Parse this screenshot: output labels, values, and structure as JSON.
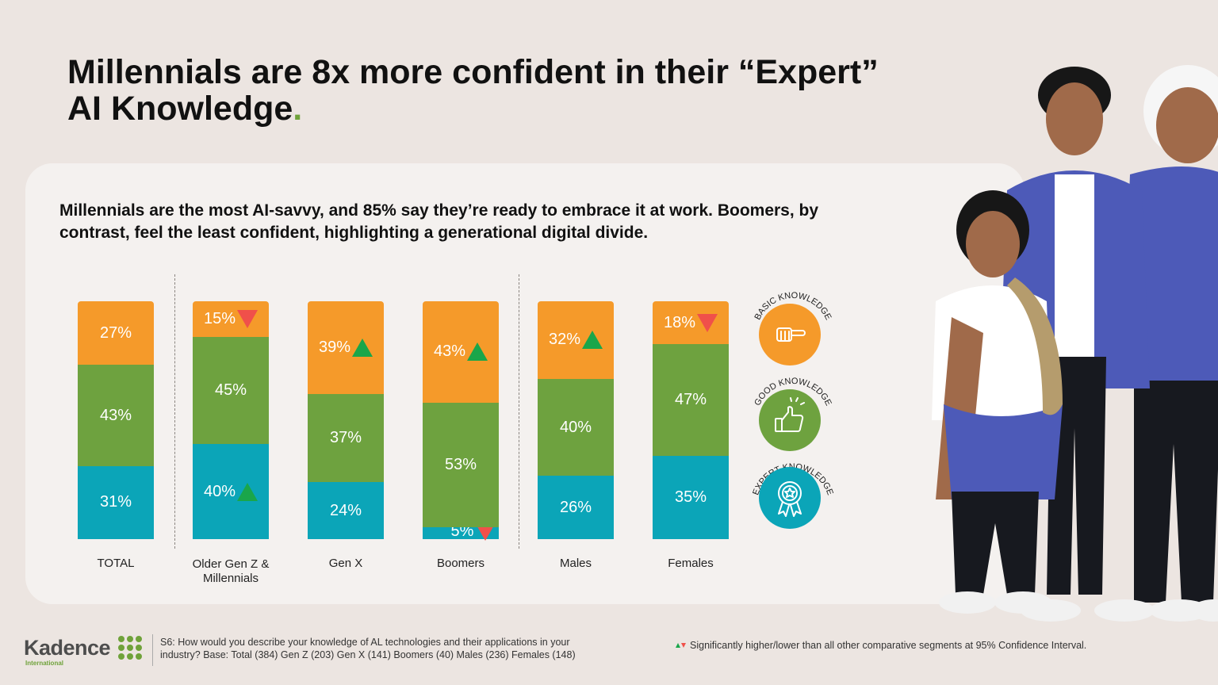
{
  "title": {
    "line1": "Millennials are 8x more confident in their “Expert”",
    "line2": "AI Knowledge",
    "dot": "."
  },
  "subtitle": {
    "line1": "Millennials are the most AI-savvy, and 85% say they’re ready to embrace it at work. Boomers, by",
    "line2": "contrast, feel the least confident, highlighting a generational digital divide."
  },
  "chart_data": {
    "type": "bar",
    "stacked": true,
    "categories": [
      "TOTAL",
      "Older Gen Z & Millennials",
      "Gen X",
      "Boomers",
      "Males",
      "Females"
    ],
    "category_lines": [
      [
        "TOTAL"
      ],
      [
        "Older Gen Z &",
        "Millennials"
      ],
      [
        "Gen X"
      ],
      [
        "Boomers"
      ],
      [
        "Males"
      ],
      [
        "Females"
      ]
    ],
    "series": [
      {
        "name": "EXPERT KNOWLEDGE",
        "color": "#0ba5b8",
        "values": [
          31,
          40,
          24,
          5,
          26,
          35
        ],
        "labels": [
          "31%",
          "40%",
          "24%",
          "5%",
          "26%",
          "35%"
        ],
        "sig": [
          "",
          "up",
          "",
          "down",
          "",
          ""
        ]
      },
      {
        "name": "GOOD KNOWLEDGE",
        "color": "#6ea23f",
        "values": [
          43,
          45,
          37,
          53,
          40,
          47
        ],
        "labels": [
          "43%",
          "45%",
          "37%",
          "53%",
          "40%",
          "47%"
        ],
        "sig": [
          "",
          "",
          "",
          "",
          "",
          ""
        ]
      },
      {
        "name": "BASIC KNOWLEDGE",
        "color": "#f59a2a",
        "values": [
          27,
          15,
          39,
          43,
          32,
          18
        ],
        "labels": [
          "27%",
          "15%",
          "39%",
          "43%",
          "32%",
          "18%"
        ],
        "sig": [
          "",
          "down",
          "up",
          "up",
          "up",
          "down"
        ]
      }
    ],
    "legend": [
      "BASIC KNOWLEDGE",
      "GOOD KNOWLEDGE",
      "EXPERT KNOWLEDGE"
    ],
    "legend_position": "right",
    "ylim": [
      0,
      100
    ],
    "grid": false
  },
  "legend_icons": [
    "pointing-hand-icon",
    "thumbs-up-icon",
    "award-ribbon-icon"
  ],
  "footer": {
    "logo_name": "Kadence",
    "logo_sub": "International",
    "note_line1": "S6: How would you describe your knowledge of AL technologies and their applications in your",
    "note_line2": "industry? Base: Total (384) Gen Z (203) Gen X (141) Boomers (40) Males (236) Females (148)",
    "significance": "Significantly higher/lower than all other comparative segments at 95% Confidence Interval."
  },
  "colors": {
    "background": "#ece5e1",
    "panel": "#f4f1ef",
    "basic": "#f59a2a",
    "good": "#6ea23f",
    "expert": "#0ba5b8",
    "sig_up": "#1aa64a",
    "sig_down": "#f0504a",
    "accent_dot": "#6fa23a"
  }
}
